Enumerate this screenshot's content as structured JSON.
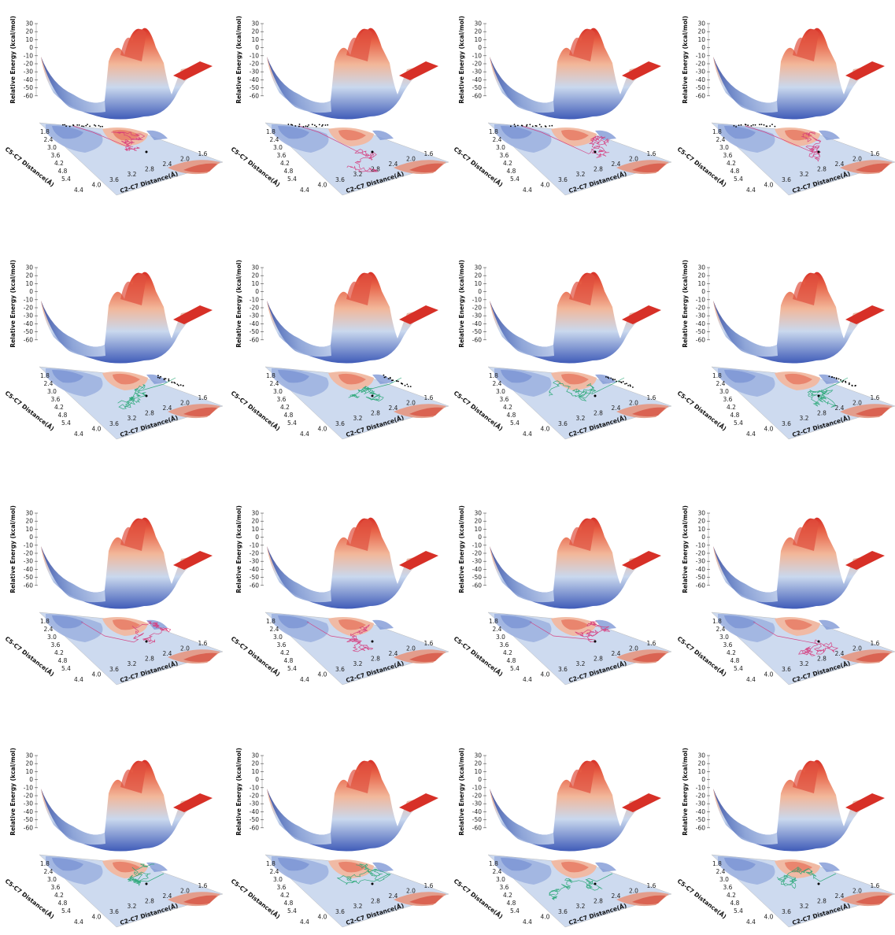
{
  "colors": {
    "surface_low": "#3f5bb8",
    "surface_mid": "#c9d8ee",
    "surface_high": "#d73027",
    "floor_base": "#cddaef",
    "traj_pink": "#d6377a",
    "traj_green": "#23a572"
  },
  "chart_data": [
    {
      "type": "surface3d",
      "zlabel": "Relative Energy (kcal/mol)",
      "xlabel": "C2-C7 Distance(Å)",
      "ylabel": "C5-C7 Distance(Å)",
      "zticks": [
        "30",
        "20",
        "10",
        "0",
        "-10",
        "-20",
        "-30",
        "-40",
        "-50",
        "-60"
      ],
      "xticks": [
        "4.4",
        "4.0",
        "3.6",
        "3.2",
        "2.8",
        "2.4",
        "2.0",
        "1.6"
      ],
      "yticks": [
        "1.8",
        "2.4",
        "3.0",
        "3.6",
        "4.2",
        "4.8",
        "5.4"
      ],
      "zlim": [
        -60,
        30
      ],
      "series": [
        {
          "trajectory_color": "pink",
          "scatter_location": "top-left"
        }
      ]
    },
    {
      "type": "surface3d",
      "zlabel": "Relative Energy (kcal/mol)",
      "xlabel": "C2-C7 Distance(Å)",
      "ylabel": "C5-C7 Distance(Å)",
      "zticks": [
        "30",
        "20",
        "10",
        "0",
        "-10",
        "-20",
        "-30",
        "-40",
        "-50",
        "-60"
      ],
      "xticks": [
        "4.4",
        "4.0",
        "3.6",
        "3.2",
        "2.8",
        "2.4",
        "2.0",
        "1.6"
      ],
      "yticks": [
        "1.8",
        "2.4",
        "3.0",
        "3.6",
        "4.2",
        "4.8",
        "5.4"
      ],
      "zlim": [
        -60,
        30
      ],
      "series": [
        {
          "trajectory_color": "pink",
          "scatter_location": "top-left"
        }
      ]
    },
    {
      "type": "surface3d",
      "zlabel": "Relative Energy (kcal/mol)",
      "xlabel": "C2-C7 Distance(Å)",
      "ylabel": "C5-C7 Distance(Å)",
      "zticks": [
        "30",
        "20",
        "10",
        "0",
        "-10",
        "-20",
        "-30",
        "-40",
        "-50",
        "-60"
      ],
      "xticks": [
        "4.4",
        "4.0",
        "3.6",
        "3.2",
        "2.8",
        "2.4",
        "2.0",
        "1.6"
      ],
      "yticks": [
        "1.8",
        "2.4",
        "3.0",
        "3.6",
        "4.2",
        "4.8",
        "5.4"
      ],
      "zlim": [
        -60,
        30
      ],
      "series": [
        {
          "trajectory_color": "pink",
          "scatter_location": "top-left"
        }
      ]
    },
    {
      "type": "surface3d",
      "zlabel": "Relative Energy (kcal/mol)",
      "xlabel": "C2-C7 Distance(Å)",
      "ylabel": "C5-C7 Distance(Å)",
      "zticks": [
        "30",
        "20",
        "10",
        "0",
        "-10",
        "-20",
        "-30",
        "-40",
        "-50",
        "-60"
      ],
      "xticks": [
        "4.4",
        "4.0",
        "3.6",
        "3.2",
        "2.8",
        "2.4",
        "2.0",
        "1.6"
      ],
      "yticks": [
        "1.8",
        "2.4",
        "3.0",
        "3.6",
        "4.2",
        "4.8",
        "5.4"
      ],
      "zlim": [
        -60,
        30
      ],
      "series": [
        {
          "trajectory_color": "pink",
          "scatter_location": "top-left"
        }
      ]
    },
    {
      "type": "surface3d",
      "zlabel": "Relative Energy (kcal/mol)",
      "xlabel": "C2-C7 Distance(Å)",
      "ylabel": "C5-C7 Distance(Å)",
      "zticks": [
        "30",
        "20",
        "10",
        "0",
        "-10",
        "-20",
        "-30",
        "-40",
        "-50",
        "-60"
      ],
      "xticks": [
        "4.4",
        "4.0",
        "3.6",
        "3.2",
        "2.8",
        "2.4",
        "2.0",
        "1.6"
      ],
      "yticks": [
        "1.8",
        "2.4",
        "3.0",
        "3.6",
        "4.2",
        "4.8",
        "5.4"
      ],
      "zlim": [
        -60,
        30
      ],
      "series": [
        {
          "trajectory_color": "green",
          "scatter_location": "top-right"
        }
      ]
    },
    {
      "type": "surface3d",
      "zlabel": "Relative Energy (kcal/mol)",
      "xlabel": "C2-C7 Distance(Å)",
      "ylabel": "C5-C7 Distance(Å)",
      "zticks": [
        "30",
        "20",
        "10",
        "0",
        "-10",
        "-20",
        "-30",
        "-40",
        "-50",
        "-60"
      ],
      "xticks": [
        "4.4",
        "4.0",
        "3.6",
        "3.2",
        "2.8",
        "2.4",
        "2.0",
        "1.6"
      ],
      "yticks": [
        "1.8",
        "2.4",
        "3.0",
        "3.6",
        "4.2",
        "4.8",
        "5.4"
      ],
      "zlim": [
        -60,
        30
      ],
      "series": [
        {
          "trajectory_color": "green",
          "scatter_location": "top-right"
        }
      ]
    },
    {
      "type": "surface3d",
      "zlabel": "Relative Energy (kcal/mol)",
      "xlabel": "C2-C7 Distance(Å)",
      "ylabel": "C5-C7 Distance(Å)",
      "zticks": [
        "30",
        "20",
        "10",
        "0",
        "-10",
        "-20",
        "-30",
        "-40",
        "-50",
        "-60"
      ],
      "xticks": [
        "4.4",
        "4.0",
        "3.6",
        "3.2",
        "2.8",
        "2.4",
        "2.0",
        "1.6"
      ],
      "yticks": [
        "1.8",
        "2.4",
        "3.0",
        "3.6",
        "4.2",
        "4.8",
        "5.4"
      ],
      "zlim": [
        -60,
        30
      ],
      "series": [
        {
          "trajectory_color": "green",
          "scatter_location": "top-right"
        }
      ]
    },
    {
      "type": "surface3d",
      "zlabel": "Relative Energy (kcal/mol)",
      "xlabel": "C2-C7 Distance(Å)",
      "ylabel": "C5-C7 Distance(Å)",
      "zticks": [
        "30",
        "20",
        "10",
        "0",
        "-10",
        "-20",
        "-30",
        "-40",
        "-50",
        "-60"
      ],
      "xticks": [
        "4.4",
        "4.0",
        "3.6",
        "3.2",
        "2.8",
        "2.4",
        "2.0",
        "1.6"
      ],
      "yticks": [
        "1.8",
        "2.4",
        "3.0",
        "3.6",
        "4.2",
        "4.8",
        "5.4"
      ],
      "zlim": [
        -60,
        30
      ],
      "series": [
        {
          "trajectory_color": "green",
          "scatter_location": "top-right"
        }
      ]
    },
    {
      "type": "surface3d",
      "zlabel": "Relative Energy (kcal/mol)",
      "xlabel": "C2-C7 Distance(Å)",
      "ylabel": "C5-C7 Distance(Å)",
      "zticks": [
        "30",
        "20",
        "10",
        "0",
        "-10",
        "-20",
        "-30",
        "-40",
        "-50",
        "-60"
      ],
      "xticks": [
        "4.4",
        "4.0",
        "3.6",
        "3.2",
        "2.8",
        "2.4",
        "2.0",
        "1.6"
      ],
      "yticks": [
        "1.8",
        "2.4",
        "3.0",
        "3.6",
        "4.2",
        "4.8",
        "5.4"
      ],
      "zlim": [
        -60,
        30
      ],
      "series": [
        {
          "trajectory_color": "pink",
          "scatter_location": "none"
        }
      ]
    },
    {
      "type": "surface3d",
      "zlabel": "Relative Energy (kcal/mol)",
      "xlabel": "C2-C7 Distance(Å)",
      "ylabel": "C5-C7 Distance(Å)",
      "zticks": [
        "30",
        "20",
        "10",
        "0",
        "-10",
        "-20",
        "-30",
        "-40",
        "-50",
        "-60"
      ],
      "xticks": [
        "4.4",
        "4.0",
        "3.6",
        "3.2",
        "2.8",
        "2.4",
        "2.0",
        "1.6"
      ],
      "yticks": [
        "1.8",
        "2.4",
        "3.0",
        "3.6",
        "4.2",
        "4.8",
        "5.4"
      ],
      "zlim": [
        -60,
        30
      ],
      "series": [
        {
          "trajectory_color": "pink",
          "scatter_location": "none"
        }
      ]
    },
    {
      "type": "surface3d",
      "zlabel": "Relative Energy (kcal/mol)",
      "xlabel": "C2-C7 Distance(Å)",
      "ylabel": "C5-C7 Distance(Å)",
      "zticks": [
        "30",
        "20",
        "10",
        "0",
        "-10",
        "-20",
        "-30",
        "-40",
        "-50",
        "-60"
      ],
      "xticks": [
        "4.4",
        "4.0",
        "3.6",
        "3.2",
        "2.8",
        "2.4",
        "2.0",
        "1.6"
      ],
      "yticks": [
        "1.8",
        "2.4",
        "3.0",
        "3.6",
        "4.2",
        "4.8",
        "5.4"
      ],
      "zlim": [
        -60,
        30
      ],
      "series": [
        {
          "trajectory_color": "pink",
          "scatter_location": "none"
        }
      ]
    },
    {
      "type": "surface3d",
      "zlabel": "Relative Energy (kcal/mol)",
      "xlabel": "C2-C7 Distance(Å)",
      "ylabel": "C5-C7 Distance(Å)",
      "zticks": [
        "30",
        "20",
        "10",
        "0",
        "-10",
        "-20",
        "-30",
        "-40",
        "-50",
        "-60"
      ],
      "xticks": [
        "4.4",
        "4.0",
        "3.6",
        "3.2",
        "2.8",
        "2.4",
        "2.0",
        "1.6"
      ],
      "yticks": [
        "1.8",
        "2.4",
        "3.0",
        "3.6",
        "4.2",
        "4.8",
        "5.4"
      ],
      "zlim": [
        -60,
        30
      ],
      "series": [
        {
          "trajectory_color": "pink",
          "scatter_location": "none"
        }
      ]
    },
    {
      "type": "surface3d",
      "zlabel": "Relative Energy (kcal/mol)",
      "xlabel": "C2-C7 Distance(Å)",
      "ylabel": "C5-C7 Distance(Å)",
      "zticks": [
        "30",
        "20",
        "10",
        "0",
        "-10",
        "-20",
        "-30",
        "-40",
        "-50",
        "-60"
      ],
      "xticks": [
        "4.4",
        "4.0",
        "3.6",
        "3.2",
        "2.8",
        "2.4",
        "2.0",
        "1.6"
      ],
      "yticks": [
        "1.8",
        "2.4",
        "3.0",
        "3.6",
        "4.2",
        "4.8",
        "5.4"
      ],
      "zlim": [
        -60,
        30
      ],
      "series": [
        {
          "trajectory_color": "green",
          "scatter_location": "none"
        }
      ]
    },
    {
      "type": "surface3d",
      "zlabel": "Relative Energy (kcal/mol)",
      "xlabel": "C2-C7 Distance(Å)",
      "ylabel": "C5-C7 Distance(Å)",
      "zticks": [
        "30",
        "20",
        "10",
        "0",
        "-10",
        "-20",
        "-30",
        "-40",
        "-50",
        "-60"
      ],
      "xticks": [
        "4.4",
        "4.0",
        "3.6",
        "3.2",
        "2.8",
        "2.4",
        "2.0",
        "1.6"
      ],
      "yticks": [
        "1.8",
        "2.4",
        "3.0",
        "3.6",
        "4.2",
        "4.8",
        "5.4"
      ],
      "zlim": [
        -60,
        30
      ],
      "series": [
        {
          "trajectory_color": "green",
          "scatter_location": "none"
        }
      ]
    },
    {
      "type": "surface3d",
      "zlabel": "Relative Energy (kcal/mol)",
      "xlabel": "C2-C7 Distance(Å)",
      "ylabel": "C5-C7 Distance(Å)",
      "zticks": [
        "30",
        "20",
        "10",
        "0",
        "-10",
        "-20",
        "-30",
        "-40",
        "-50",
        "-60"
      ],
      "xticks": [
        "4.4",
        "4.0",
        "3.6",
        "3.2",
        "2.8",
        "2.4",
        "2.0",
        "1.6"
      ],
      "yticks": [
        "1.8",
        "2.4",
        "3.0",
        "3.6",
        "4.2",
        "4.8",
        "5.4"
      ],
      "zlim": [
        -60,
        30
      ],
      "series": [
        {
          "trajectory_color": "green",
          "scatter_location": "none"
        }
      ]
    },
    {
      "type": "surface3d",
      "zlabel": "Relative Energy (kcal/mol)",
      "xlabel": "C2-C7 Distance(Å)",
      "ylabel": "C5-C7 Distance(Å)",
      "zticks": [
        "30",
        "20",
        "10",
        "0",
        "-10",
        "-20",
        "-30",
        "-40",
        "-50",
        "-60"
      ],
      "xticks": [
        "4.4",
        "4.0",
        "3.6",
        "3.2",
        "2.8",
        "2.4",
        "2.0",
        "1.6"
      ],
      "yticks": [
        "1.8",
        "2.4",
        "3.0",
        "3.6",
        "4.2",
        "4.8",
        "5.4"
      ],
      "zlim": [
        -60,
        30
      ],
      "series": [
        {
          "trajectory_color": "green",
          "scatter_location": "none"
        }
      ]
    }
  ]
}
